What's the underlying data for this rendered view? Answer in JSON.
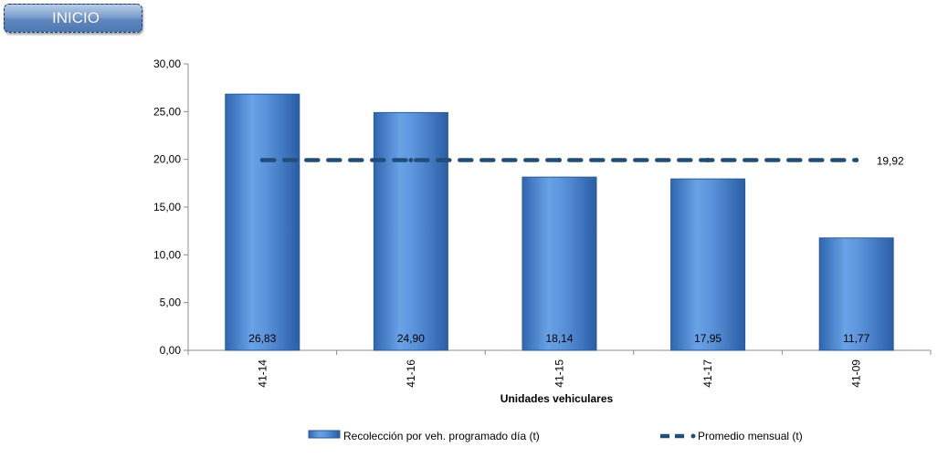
{
  "nav": {
    "inicio_label": "INICIO"
  },
  "chart_data": {
    "type": "bar",
    "categories": [
      "41-14",
      "41-16",
      "41-15",
      "41-17",
      "41-09"
    ],
    "series": [
      {
        "name": "Recolección por veh. programado día (t)",
        "values": [
          26.83,
          24.9,
          18.14,
          17.95,
          11.77
        ],
        "data_labels": [
          "26,83",
          "24,90",
          "18,14",
          "17,95",
          "11,77"
        ],
        "color": "#4a86d0"
      },
      {
        "name": "Promedio mensual (t)",
        "type": "line",
        "style": "dashed",
        "values": [
          19.92,
          19.92,
          19.92,
          19.92,
          19.92
        ],
        "data_label": "19,92",
        "color": "#1f4e79"
      }
    ],
    "title": "",
    "xlabel": "Unidades vehiculares",
    "ylabel": "",
    "ylim": [
      0,
      30
    ],
    "yticks": [
      {
        "value": 0,
        "label": "0,00"
      },
      {
        "value": 5,
        "label": "5,00"
      },
      {
        "value": 10,
        "label": "10,00"
      },
      {
        "value": 15,
        "label": "15,00"
      },
      {
        "value": 20,
        "label": "20,00"
      },
      {
        "value": 25,
        "label": "25,00"
      },
      {
        "value": 30,
        "label": "30,00"
      }
    ],
    "grid": false,
    "legend_position": "bottom"
  }
}
